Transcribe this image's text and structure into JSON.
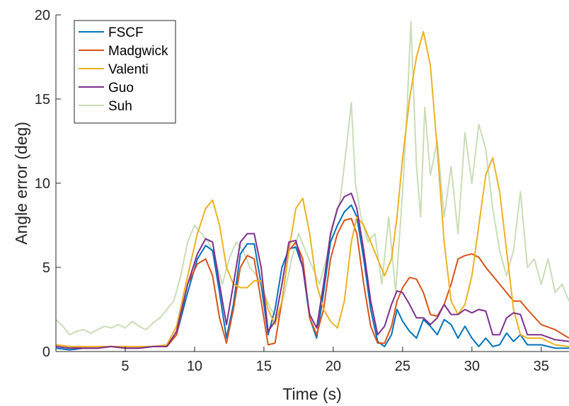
{
  "chart_data": {
    "type": "line",
    "xlabel": "Time (s)",
    "ylabel": "Angle error (deg)",
    "xlim": [
      0,
      37
    ],
    "ylim": [
      0,
      20
    ],
    "xticks": [
      "5",
      "10",
      "15",
      "20",
      "25",
      "30",
      "35"
    ],
    "yticks": [
      "0",
      "5",
      "10",
      "15",
      "20"
    ],
    "legend_position": "top-left",
    "grid": false,
    "series": [
      {
        "name": "FSCF",
        "color": "#0072BD",
        "x": [
          0,
          1,
          2,
          3,
          4,
          5,
          6,
          7,
          8,
          8.7,
          9.5,
          10.2,
          10.8,
          11.3,
          11.8,
          12.3,
          12.8,
          13.3,
          13.8,
          14.3,
          14.8,
          15.3,
          15.8,
          16.3,
          16.8,
          17.3,
          17.8,
          18.3,
          18.8,
          19.3,
          19.8,
          20.3,
          20.8,
          21.3,
          21.7,
          22.2,
          22.7,
          23.2,
          23.7,
          24.2,
          24.6,
          25,
          25.5,
          26,
          26.5,
          27,
          27.5,
          28,
          28.5,
          29,
          29.5,
          30,
          30.5,
          31,
          31.5,
          32,
          32.5,
          33,
          33.5,
          34,
          35,
          36,
          37
        ],
        "values": [
          0.2,
          0.1,
          0.2,
          0.2,
          0.3,
          0.2,
          0.2,
          0.3,
          0.3,
          1.0,
          3.5,
          5.5,
          6.3,
          6.0,
          3.5,
          0.8,
          2.8,
          5.8,
          6.4,
          6.4,
          4.0,
          1.0,
          2.5,
          5.0,
          6.1,
          6.2,
          5.0,
          2.0,
          0.8,
          3.5,
          6.5,
          7.5,
          8.3,
          8.7,
          8.0,
          5.5,
          2.5,
          0.6,
          0.3,
          1.0,
          2.5,
          1.8,
          1.2,
          0.8,
          1.9,
          1.5,
          1.0,
          1.9,
          1.6,
          0.8,
          1.5,
          0.8,
          0.3,
          0.8,
          0.3,
          0.4,
          1.1,
          0.6,
          1.0,
          0.4,
          0.4,
          0.2,
          0.2
        ]
      },
      {
        "name": "Madgwick",
        "color": "#D95319",
        "x": [
          0,
          1,
          2,
          3,
          4,
          5,
          6,
          7,
          8,
          8.7,
          9.5,
          10.2,
          10.8,
          11.3,
          11.8,
          12.3,
          12.8,
          13.3,
          13.8,
          14.3,
          14.8,
          15.3,
          15.8,
          16.3,
          16.8,
          17.3,
          17.8,
          18.3,
          18.8,
          19.3,
          19.8,
          20.3,
          20.8,
          21.3,
          21.7,
          22.2,
          22.7,
          23.2,
          23.7,
          24.2,
          24.6,
          25,
          25.5,
          26,
          26.5,
          27,
          27.5,
          28,
          28.5,
          29,
          29.5,
          30,
          30.5,
          31,
          31.5,
          32,
          32.5,
          33,
          33.5,
          34,
          35,
          36,
          37
        ],
        "values": [
          0.4,
          0.3,
          0.2,
          0.2,
          0.3,
          0.2,
          0.2,
          0.3,
          0.3,
          1.0,
          4.0,
          5.2,
          5.5,
          4.5,
          2.0,
          0.5,
          2.5,
          5.0,
          5.7,
          5.5,
          3.0,
          0.4,
          0.5,
          3.0,
          6.0,
          6.5,
          5.5,
          2.0,
          1.0,
          2.5,
          5.5,
          7.0,
          7.8,
          7.9,
          7.0,
          4.0,
          1.5,
          0.5,
          0.5,
          1.5,
          3.0,
          3.8,
          4.4,
          4.3,
          3.5,
          2.2,
          2.1,
          2.8,
          4.0,
          5.5,
          5.7,
          5.8,
          5.6,
          5.0,
          4.5,
          4.0,
          3.5,
          3.0,
          3.0,
          2.5,
          1.6,
          1.3,
          0.8
        ]
      },
      {
        "name": "Valenti",
        "color": "#EDB120",
        "x": [
          0,
          1,
          2,
          3,
          4,
          5,
          6,
          7,
          8,
          8.7,
          9.5,
          10.2,
          10.8,
          11.3,
          11.8,
          12.3,
          12.8,
          13.3,
          13.8,
          14.3,
          14.8,
          15.3,
          15.8,
          16.3,
          16.8,
          17.3,
          17.8,
          18.3,
          18.8,
          19.3,
          19.8,
          20.3,
          20.8,
          21.3,
          21.7,
          22.2,
          22.7,
          23.2,
          23.7,
          24.2,
          24.6,
          25,
          25.5,
          26,
          26.5,
          27,
          27.5,
          28,
          28.5,
          29,
          29.5,
          30,
          30.5,
          31,
          31.5,
          32,
          32.5,
          33,
          33.5,
          34,
          35,
          36,
          37
        ],
        "values": [
          0.4,
          0.3,
          0.3,
          0.3,
          0.3,
          0.3,
          0.3,
          0.3,
          0.4,
          1.5,
          4.5,
          7.0,
          8.5,
          9.0,
          7.5,
          5.0,
          4.0,
          3.8,
          3.8,
          4.2,
          4.2,
          2.5,
          1.6,
          3.0,
          6.0,
          8.5,
          9.1,
          7.0,
          4.0,
          2.5,
          1.8,
          1.4,
          3.0,
          6.5,
          8.0,
          7.5,
          6.5,
          5.5,
          4.5,
          5.5,
          8.0,
          11.5,
          15.0,
          17.5,
          19.0,
          17.0,
          12.0,
          6.5,
          3.0,
          2.2,
          2.8,
          4.5,
          7.5,
          10.5,
          11.5,
          9.5,
          6.0,
          2.5,
          1.0,
          0.8,
          0.8,
          0.4,
          0.3
        ]
      },
      {
        "name": "Guo",
        "color": "#7E2F8E",
        "x": [
          0,
          1,
          2,
          3,
          4,
          5,
          6,
          7,
          8,
          8.7,
          9.5,
          10.2,
          10.8,
          11.3,
          11.8,
          12.3,
          12.8,
          13.3,
          13.8,
          14.3,
          14.8,
          15.3,
          15.8,
          16.3,
          16.8,
          17.3,
          17.8,
          18.3,
          18.8,
          19.3,
          19.8,
          20.3,
          20.8,
          21.3,
          21.7,
          22.2,
          22.7,
          23.2,
          23.7,
          24.2,
          24.6,
          25,
          25.5,
          26,
          26.5,
          27,
          27.5,
          28,
          28.5,
          29,
          29.5,
          30,
          30.5,
          31,
          31.5,
          32,
          32.5,
          33,
          33.5,
          34,
          35,
          36,
          37
        ],
        "values": [
          0.3,
          0.2,
          0.2,
          0.2,
          0.3,
          0.2,
          0.2,
          0.3,
          0.3,
          1.2,
          4.0,
          5.8,
          6.7,
          6.5,
          4.0,
          1.6,
          4.0,
          6.5,
          7.0,
          7.0,
          5.0,
          1.2,
          1.8,
          4.0,
          6.5,
          6.6,
          5.0,
          2.2,
          1.4,
          4.0,
          7.0,
          8.5,
          9.2,
          9.4,
          8.5,
          6.0,
          3.0,
          1.0,
          1.5,
          2.8,
          3.6,
          3.5,
          2.8,
          2.0,
          2.0,
          1.6,
          2.0,
          2.8,
          2.2,
          2.2,
          2.5,
          2.3,
          2.5,
          2.4,
          1.0,
          1.0,
          2.0,
          2.3,
          2.2,
          1.0,
          1.0,
          0.7,
          0.6
        ]
      },
      {
        "name": "Suh",
        "color": "#C9DDB6",
        "x": [
          0,
          0.5,
          1,
          1.5,
          2,
          2.5,
          3,
          3.5,
          4,
          4.5,
          5,
          5.5,
          6,
          6.5,
          7,
          7.5,
          8,
          8.5,
          9,
          9.5,
          10,
          10.5,
          11,
          11.5,
          12,
          12.5,
          13,
          13.5,
          14,
          14.5,
          15,
          15.5,
          16,
          16.5,
          17,
          17.5,
          18,
          18.5,
          19,
          19.5,
          20,
          20.5,
          21,
          21.3,
          21.6,
          22,
          22.5,
          23,
          23.5,
          24,
          24.5,
          25,
          25.3,
          25.6,
          26,
          26.3,
          26.6,
          27,
          27.5,
          28,
          28.5,
          29,
          29.5,
          30,
          30.5,
          31,
          31.5,
          32,
          32.5,
          33,
          33.5,
          34,
          34.5,
          35,
          35.5,
          36,
          36.5,
          37
        ],
        "values": [
          1.9,
          1.5,
          1.0,
          1.2,
          1.3,
          1.1,
          1.3,
          1.5,
          1.4,
          1.6,
          1.4,
          1.8,
          1.5,
          1.3,
          1.7,
          2.0,
          2.5,
          3.0,
          4.5,
          6.5,
          7.5,
          7.0,
          6.5,
          5.5,
          4.0,
          5.5,
          6.5,
          6.0,
          5.0,
          4.5,
          3.5,
          2.5,
          2.0,
          3.5,
          5.5,
          7.0,
          6.0,
          5.0,
          4.0,
          5.5,
          7.5,
          9.0,
          12.5,
          14.8,
          10.0,
          8.0,
          6.5,
          7.0,
          4.0,
          8.0,
          3.5,
          9.5,
          14.0,
          19.6,
          11.0,
          8.0,
          14.5,
          10.5,
          12.5,
          8.0,
          11.0,
          7.0,
          13.0,
          10.0,
          13.5,
          12.0,
          8.5,
          6.0,
          4.5,
          6.0,
          9.5,
          5.0,
          5.5,
          4.0,
          5.5,
          3.5,
          4.0,
          3.0
        ]
      }
    ]
  }
}
